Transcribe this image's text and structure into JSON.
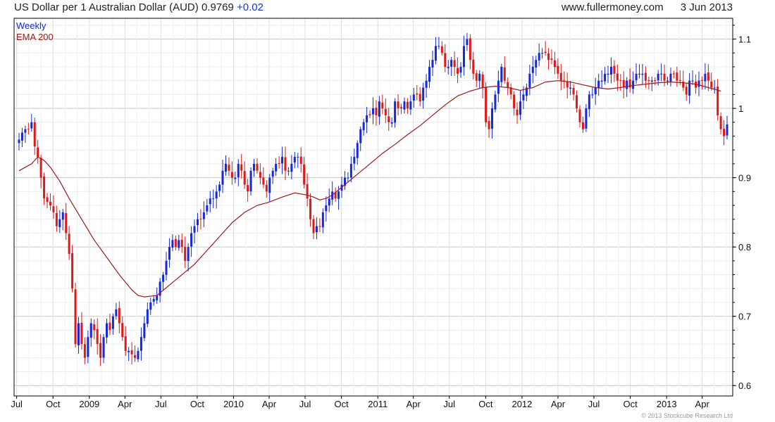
{
  "header": {
    "title": "US Dollar per 1 Australian Dollar (AUD)",
    "last_value": "0.9769",
    "change": "+0.02",
    "site": "www.fullermoney.com",
    "date": "3 Jun 2013"
  },
  "footer": {
    "copyright": "© 2013 Stockcube Research Ltd"
  },
  "colors": {
    "up": "#1428e0",
    "down": "#e01818",
    "ema": "#9b1b1b",
    "grid": "#d8d8d8",
    "axis": "#000000"
  },
  "chart_data": {
    "type": "candlestick",
    "interval": "Weekly",
    "legend": [
      {
        "name": "Weekly",
        "color": "#1428e0"
      },
      {
        "name": "EMA 200",
        "color": "#9b1b1b"
      }
    ],
    "legend_placement": "top-left",
    "y_axis": {
      "side": "right",
      "ticks": [
        0.6,
        0.7,
        0.8,
        0.9,
        1,
        1.1
      ],
      "tick_labels": [
        "0.6",
        "0.7",
        "0.8",
        "0.9",
        "1",
        "1.1"
      ],
      "range": [
        0.585,
        1.13
      ]
    },
    "x_axis": {
      "start": "2008-07-07",
      "end": "2013-06-03",
      "ticks": [
        {
          "date": "2008-07-01",
          "label": "Jul"
        },
        {
          "date": "2008-10-01",
          "label": "Oct"
        },
        {
          "date": "2009-01-01",
          "label": "2009"
        },
        {
          "date": "2009-04-01",
          "label": "Apr"
        },
        {
          "date": "2009-07-01",
          "label": "Jul"
        },
        {
          "date": "2009-10-01",
          "label": "Oct"
        },
        {
          "date": "2010-01-01",
          "label": "2010"
        },
        {
          "date": "2010-04-01",
          "label": "Apr"
        },
        {
          "date": "2010-07-01",
          "label": "Jul"
        },
        {
          "date": "2010-10-01",
          "label": "Oct"
        },
        {
          "date": "2011-01-01",
          "label": "2011"
        },
        {
          "date": "2011-04-01",
          "label": "Apr"
        },
        {
          "date": "2011-07-01",
          "label": "Jul"
        },
        {
          "date": "2011-10-01",
          "label": "Oct"
        },
        {
          "date": "2012-01-01",
          "label": "2012"
        },
        {
          "date": "2012-04-01",
          "label": "Apr"
        },
        {
          "date": "2012-07-01",
          "label": "Jul"
        },
        {
          "date": "2012-10-01",
          "label": "Oct"
        },
        {
          "date": "2013-01-01",
          "label": "2013"
        },
        {
          "date": "2013-04-01",
          "label": "Apr"
        }
      ]
    },
    "grid": true,
    "closes": [
      0.955,
      0.965,
      0.97,
      0.97,
      0.98,
      0.945,
      0.93,
      0.9,
      0.87,
      0.865,
      0.86,
      0.85,
      0.83,
      0.84,
      0.85,
      0.82,
      0.79,
      0.74,
      0.66,
      0.69,
      0.66,
      0.64,
      0.67,
      0.69,
      0.68,
      0.66,
      0.64,
      0.67,
      0.69,
      0.68,
      0.7,
      0.71,
      0.69,
      0.67,
      0.65,
      0.65,
      0.645,
      0.64,
      0.65,
      0.67,
      0.69,
      0.71,
      0.72,
      0.725,
      0.73,
      0.75,
      0.76,
      0.78,
      0.8,
      0.81,
      0.8,
      0.81,
      0.8,
      0.78,
      0.8,
      0.82,
      0.83,
      0.84,
      0.84,
      0.85,
      0.86,
      0.87,
      0.87,
      0.88,
      0.89,
      0.91,
      0.92,
      0.91,
      0.9,
      0.9,
      0.92,
      0.91,
      0.89,
      0.88,
      0.91,
      0.92,
      0.91,
      0.9,
      0.89,
      0.88,
      0.9,
      0.91,
      0.92,
      0.92,
      0.93,
      0.91,
      0.91,
      0.92,
      0.93,
      0.93,
      0.92,
      0.89,
      0.87,
      0.84,
      0.82,
      0.83,
      0.83,
      0.85,
      0.86,
      0.87,
      0.88,
      0.87,
      0.88,
      0.89,
      0.9,
      0.9,
      0.92,
      0.93,
      0.95,
      0.97,
      0.98,
      0.99,
      0.99,
      1.0,
      0.99,
      1.01,
      1.0,
      0.99,
      0.98,
      0.98,
      1.01,
      1.0,
      1.0,
      1.01,
      1.0,
      1.01,
      1.02,
      1.02,
      1.01,
      1.03,
      1.04,
      1.06,
      1.07,
      1.09,
      1.09,
      1.08,
      1.06,
      1.06,
      1.07,
      1.06,
      1.05,
      1.06,
      1.09,
      1.1,
      1.07,
      1.05,
      1.04,
      1.05,
      1.03,
      0.98,
      0.97,
      1.0,
      1.02,
      1.04,
      1.06,
      1.04,
      1.03,
      1.02,
      1.0,
      0.99,
      1.01,
      1.02,
      1.03,
      1.05,
      1.06,
      1.07,
      1.08,
      1.08,
      1.08,
      1.07,
      1.07,
      1.06,
      1.05,
      1.04,
      1.04,
      1.03,
      1.03,
      1.02,
      1.0,
      0.98,
      0.97,
      1.0,
      1.02,
      1.02,
      1.03,
      1.04,
      1.04,
      1.05,
      1.05,
      1.06,
      1.05,
      1.04,
      1.04,
      1.03,
      1.04,
      1.03,
      1.04,
      1.05,
      1.05,
      1.05,
      1.04,
      1.04,
      1.04,
      1.04,
      1.05,
      1.05,
      1.04,
      1.04,
      1.05,
      1.05,
      1.04,
      1.04,
      1.03,
      1.02,
      1.04,
      1.04,
      1.03,
      1.04,
      1.04,
      1.05,
      1.04,
      1.03,
      1.03,
      0.99,
      0.97,
      0.96,
      0.9769
    ],
    "ema_200": [
      [
        0,
        0.91
      ],
      [
        2,
        0.915
      ],
      [
        4,
        0.92
      ],
      [
        5,
        0.925
      ],
      [
        6,
        0.93
      ],
      [
        8,
        0.925
      ],
      [
        10,
        0.915
      ],
      [
        13,
        0.895
      ],
      [
        16,
        0.87
      ],
      [
        20,
        0.84
      ],
      [
        24,
        0.81
      ],
      [
        28,
        0.785
      ],
      [
        32,
        0.76
      ],
      [
        36,
        0.738
      ],
      [
        38,
        0.73
      ],
      [
        40,
        0.728
      ],
      [
        44,
        0.73
      ],
      [
        48,
        0.745
      ],
      [
        52,
        0.76
      ],
      [
        56,
        0.775
      ],
      [
        60,
        0.795
      ],
      [
        64,
        0.815
      ],
      [
        68,
        0.835
      ],
      [
        72,
        0.85
      ],
      [
        76,
        0.86
      ],
      [
        80,
        0.865
      ],
      [
        84,
        0.872
      ],
      [
        88,
        0.878
      ],
      [
        92,
        0.875
      ],
      [
        94,
        0.872
      ],
      [
        96,
        0.868
      ],
      [
        98,
        0.87
      ],
      [
        100,
        0.875
      ],
      [
        104,
        0.89
      ],
      [
        108,
        0.905
      ],
      [
        112,
        0.92
      ],
      [
        116,
        0.935
      ],
      [
        120,
        0.948
      ],
      [
        124,
        0.962
      ],
      [
        128,
        0.975
      ],
      [
        132,
        0.99
      ],
      [
        136,
        1.005
      ],
      [
        140,
        1.018
      ],
      [
        144,
        1.025
      ],
      [
        148,
        1.03
      ],
      [
        152,
        1.032
      ],
      [
        156,
        1.03
      ],
      [
        160,
        1.026
      ],
      [
        164,
        1.03
      ],
      [
        168,
        1.038
      ],
      [
        172,
        1.04
      ],
      [
        176,
        1.038
      ],
      [
        180,
        1.034
      ],
      [
        184,
        1.03
      ],
      [
        188,
        1.028
      ],
      [
        192,
        1.03
      ],
      [
        196,
        1.033
      ],
      [
        200,
        1.035
      ],
      [
        204,
        1.037
      ],
      [
        208,
        1.038
      ],
      [
        212,
        1.037
      ],
      [
        216,
        1.035
      ],
      [
        220,
        1.03
      ],
      [
        224,
        1.025
      ]
    ]
  }
}
